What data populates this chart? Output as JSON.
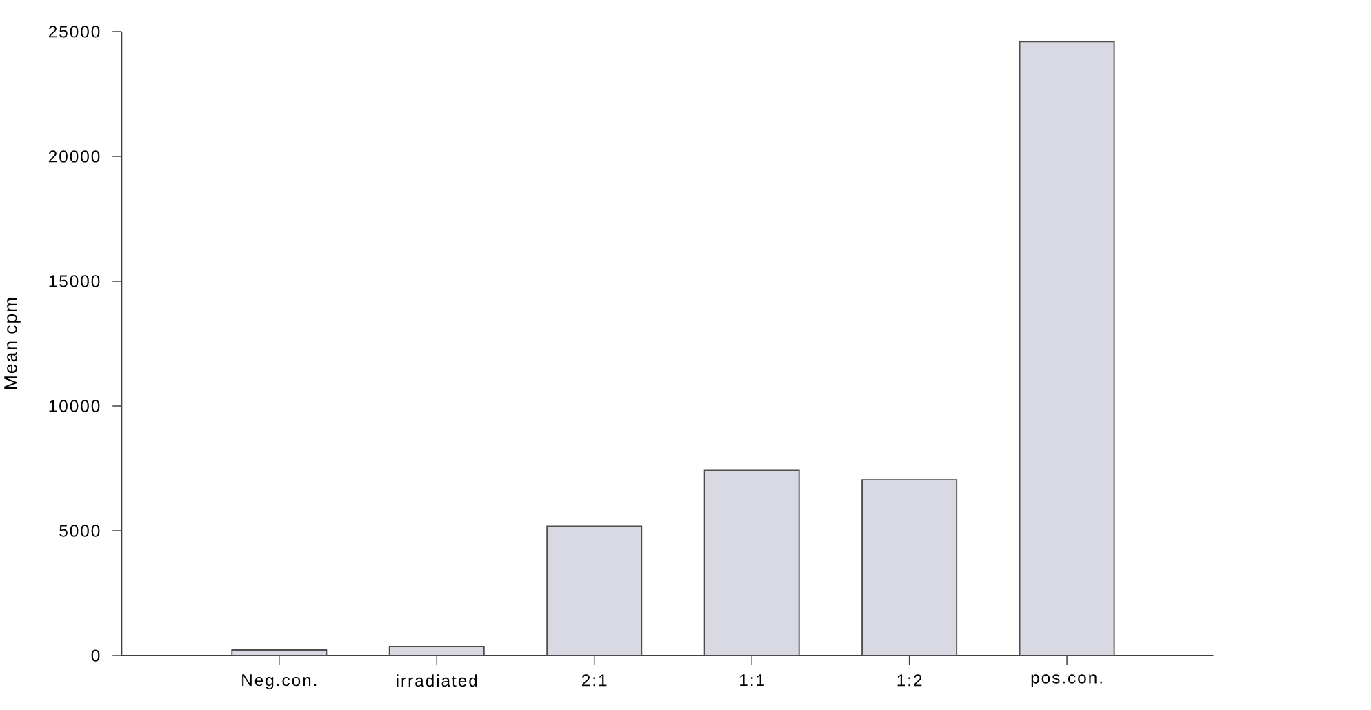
{
  "chart_data": {
    "type": "bar",
    "ylabel": "Mean cpm",
    "categories": [
      "Neg.con.",
      "irradiated",
      "2:1",
      "1:1",
      "1:2",
      "pos.con."
    ],
    "values": [
      220,
      360,
      5180,
      7420,
      7040,
      24600
    ],
    "color": "#d9d9e3",
    "ylim": [
      0,
      25000
    ],
    "yticks": [
      0,
      5000,
      10000,
      15000,
      20000,
      25000
    ],
    "grid": false
  }
}
